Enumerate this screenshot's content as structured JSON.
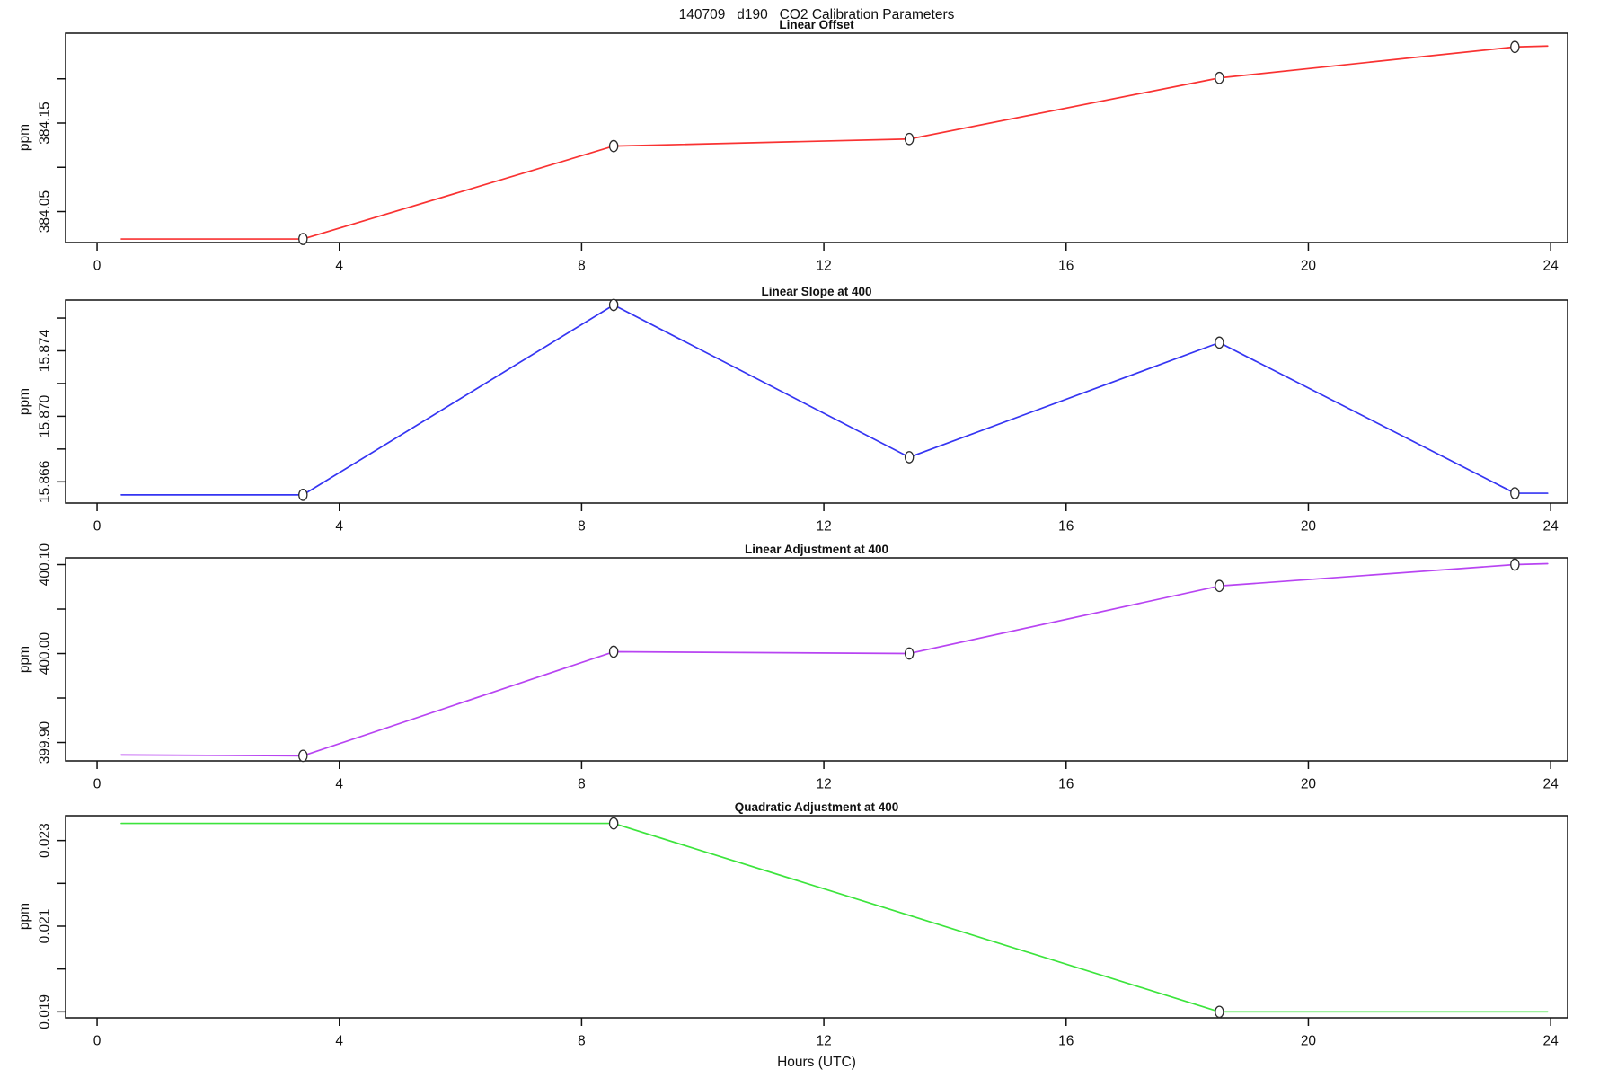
{
  "title": "140709   d190   CO2 Calibration Parameters",
  "x_axis": {
    "label": "Hours (UTC)",
    "ticks": [
      0,
      4,
      8,
      12,
      16,
      20,
      24
    ],
    "tick_labels": [
      "0",
      "4",
      "8",
      "12",
      "16",
      "20",
      "24"
    ],
    "lim": [
      -0.52,
      24.28
    ]
  },
  "chart_data": [
    {
      "type": "line",
      "title": "Linear Offset",
      "ylabel": "ppm",
      "color": "#f93232",
      "x": [
        0.4,
        3.4,
        8.53,
        13.41,
        18.53,
        23.41,
        23.95
      ],
      "y": [
        384.019,
        384.019,
        384.124,
        384.132,
        384.201,
        384.236,
        384.237
      ],
      "marker_indices": [
        1,
        2,
        3,
        4,
        5
      ],
      "ylim": [
        384.015,
        384.2515
      ],
      "yticks": [
        384.05,
        384.1,
        384.15,
        384.2
      ],
      "ytick_labels": [
        "384.05",
        "",
        "384.15",
        ""
      ]
    },
    {
      "type": "line",
      "title": "Linear Slope at 400",
      "ylabel": "ppm",
      "color": "#3535f2",
      "x": [
        0.4,
        3.4,
        8.53,
        13.41,
        18.53,
        23.41,
        23.95
      ],
      "y": [
        15.8652,
        15.8652,
        15.8768,
        15.8675,
        15.8745,
        15.8653,
        15.8653
      ],
      "marker_indices": [
        1,
        2,
        3,
        4,
        5
      ],
      "ylim": [
        15.8647,
        15.8771
      ],
      "yticks": [
        15.866,
        15.868,
        15.87,
        15.872,
        15.874,
        15.876
      ],
      "ytick_labels": [
        "15.866",
        "",
        "15.870",
        "",
        "15.874",
        ""
      ]
    },
    {
      "type": "line",
      "title": "Linear Adjustment at 400",
      "ylabel": "ppm",
      "color": "#b844f2",
      "x": [
        0.4,
        3.4,
        8.53,
        13.41,
        18.53,
        23.41,
        23.95
      ],
      "y": [
        399.886,
        399.885,
        400.002,
        400.0,
        400.076,
        400.1,
        400.101
      ],
      "marker_indices": [
        1,
        2,
        3,
        4,
        5
      ],
      "ylim": [
        399.8793,
        400.1076
      ],
      "yticks": [
        399.9,
        399.95,
        400.0,
        400.05,
        400.1
      ],
      "ytick_labels": [
        "399.90",
        "",
        "400.00",
        "",
        "400.10"
      ]
    },
    {
      "type": "line",
      "title": "Quadratic Adjustment at 400",
      "ylabel": "ppm",
      "color": "#3ce43c",
      "x": [
        0.4,
        8.53,
        18.53,
        23.95
      ],
      "y": [
        0.0234,
        0.0234,
        0.019,
        0.019
      ],
      "marker_indices": [
        1,
        2
      ],
      "ylim": [
        0.01886,
        0.02358
      ],
      "yticks": [
        0.019,
        0.02,
        0.021,
        0.022,
        0.023
      ],
      "ytick_labels": [
        "0.019",
        "",
        "0.021",
        "",
        "0.023"
      ]
    }
  ]
}
